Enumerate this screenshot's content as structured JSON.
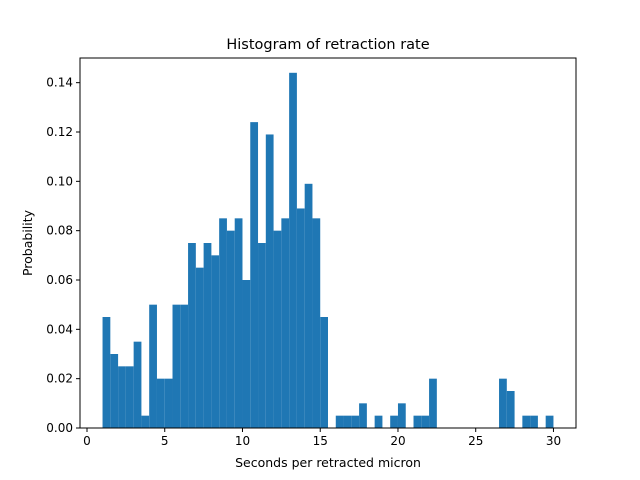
{
  "chart_data": {
    "type": "bar",
    "title": "Histogram of retraction rate",
    "xlabel": "Seconds per retracted micron",
    "ylabel": "Probability",
    "xlim": [
      -0.45,
      31.45
    ],
    "ylim": [
      0.0,
      0.15
    ],
    "xticks": [
      0,
      5,
      10,
      15,
      20,
      25,
      30
    ],
    "xtick_labels": [
      "0",
      "5",
      "10",
      "15",
      "20",
      "25",
      "30"
    ],
    "yticks": [
      0.0,
      0.02,
      0.04,
      0.06,
      0.08,
      0.1,
      0.12,
      0.14
    ],
    "ytick_labels": [
      "0.00",
      "0.02",
      "0.04",
      "0.06",
      "0.08",
      "0.10",
      "0.12",
      "0.14"
    ],
    "grid": false,
    "bin_start": 1.0,
    "bin_width": 0.5,
    "values": [
      0.045,
      0.03,
      0.025,
      0.025,
      0.035,
      0.005,
      0.05,
      0.02,
      0.02,
      0.05,
      0.05,
      0.075,
      0.065,
      0.075,
      0.07,
      0.085,
      0.08,
      0.085,
      0.06,
      0.124,
      0.075,
      0.119,
      0.08,
      0.085,
      0.144,
      0.089,
      0.099,
      0.085,
      0.045,
      0.0,
      0.005,
      0.005,
      0.005,
      0.01,
      0.0,
      0.005,
      0.0,
      0.005,
      0.01,
      0.0,
      0.005,
      0.005,
      0.02,
      0.0,
      0.0,
      0.0,
      0.0,
      0.0,
      0.0,
      0.0,
      0.0,
      0.02,
      0.015,
      0.0,
      0.005,
      0.005,
      0.0,
      0.005
    ]
  }
}
